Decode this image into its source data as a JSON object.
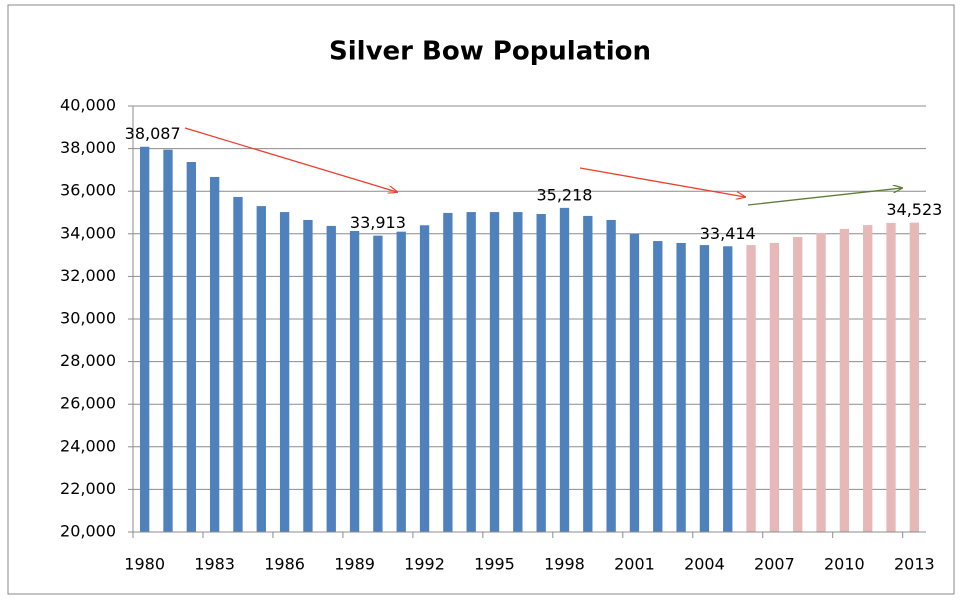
{
  "chart_data": {
    "type": "bar",
    "title": "Silver Bow Population",
    "categories": [
      "1980",
      null,
      null,
      "1983",
      null,
      null,
      "1986",
      null,
      null,
      "1989",
      null,
      null,
      "1992",
      null,
      null,
      "1995",
      null,
      null,
      "1998",
      null,
      null,
      "2001",
      null,
      null,
      "2004",
      null,
      null,
      "2007",
      null,
      null,
      "2010",
      null,
      null,
      "2013"
    ],
    "values": [
      38087,
      37950,
      37370,
      36670,
      35730,
      35300,
      35020,
      34650,
      34370,
      34130,
      33913,
      34100,
      34400,
      34980,
      35020,
      35020,
      35020,
      34930,
      35218,
      34840,
      34650,
      33990,
      33660,
      33570,
      33470,
      33414,
      33470,
      33570,
      33850,
      34040,
      34230,
      34410,
      34510,
      34523
    ],
    "value_labels": [
      "38,087",
      null,
      null,
      null,
      null,
      null,
      null,
      null,
      null,
      null,
      "33,913",
      null,
      null,
      null,
      null,
      null,
      null,
      null,
      "35,218",
      null,
      null,
      null,
      null,
      null,
      null,
      "33,414",
      null,
      null,
      null,
      null,
      null,
      null,
      null,
      "34,523"
    ],
    "colors": [
      "#4f81bd",
      "#4f81bd",
      "#4f81bd",
      "#4f81bd",
      "#4f81bd",
      "#4f81bd",
      "#4f81bd",
      "#4f81bd",
      "#4f81bd",
      "#4f81bd",
      "#4f81bd",
      "#4f81bd",
      "#4f81bd",
      "#4f81bd",
      "#4f81bd",
      "#4f81bd",
      "#4f81bd",
      "#4f81bd",
      "#4f81bd",
      "#4f81bd",
      "#4f81bd",
      "#4f81bd",
      "#4f81bd",
      "#4f81bd",
      "#4f81bd",
      "#4f81bd",
      "#e6b9b8",
      "#e6b9b8",
      "#e6b9b8",
      "#e6b9b8",
      "#e6b9b8",
      "#e6b9b8",
      "#e6b9b8",
      "#e6b9b8"
    ],
    "ylim": [
      20000,
      40000
    ],
    "yticks": [
      {
        "value": 20000,
        "label": "20,000"
      },
      {
        "value": 22000,
        "label": "22,000"
      },
      {
        "value": 24000,
        "label": "24,000"
      },
      {
        "value": 26000,
        "label": "26,000"
      },
      {
        "value": 28000,
        "label": "28,000"
      },
      {
        "value": 30000,
        "label": "30,000"
      },
      {
        "value": 32000,
        "label": "32,000"
      },
      {
        "value": 34000,
        "label": "34,000"
      },
      {
        "value": 36000,
        "label": "36,000"
      },
      {
        "value": 38000,
        "label": "38,000"
      },
      {
        "value": 40000,
        "label": "40,000"
      }
    ],
    "grid": true
  }
}
